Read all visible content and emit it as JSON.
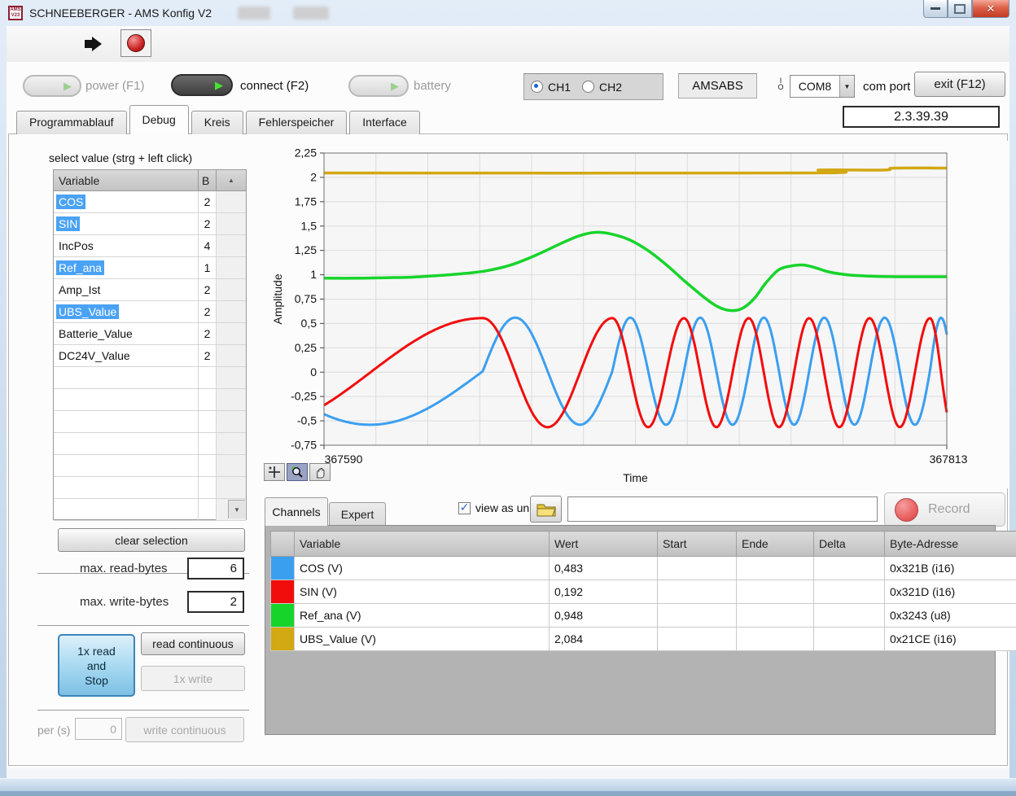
{
  "window": {
    "title": "SCHNEEBERGER - AMS Konfig V2",
    "icon_text": "AMS V23"
  },
  "toolbar": {
    "run_icon": "run-arrow",
    "stop_icon": "stop-circle"
  },
  "controls": {
    "power_label": "power (F1)",
    "connect_label": "connect (F2)",
    "battery_label": "battery",
    "power_on": false,
    "connect_on": true,
    "battery_on": false,
    "ch1_label": "CH1",
    "ch2_label": "CH2",
    "channel_selected": "CH1",
    "device_label": "AMSABS",
    "com_port_value": "COM8",
    "com_port_label": "com port",
    "exit_label": "exit (F12)",
    "version": "2.3.39.39"
  },
  "tabs": {
    "items": [
      "Programmablauf",
      "Debug",
      "Kreis",
      "Fehlerspeicher",
      "Interface"
    ],
    "active": "Debug"
  },
  "left_panel": {
    "title": "select value (strg + left click)",
    "selection_color": "#4aa2f4",
    "table": {
      "columns": [
        "Variable",
        "B"
      ],
      "rows": [
        {
          "name": "COS",
          "bytes": "2",
          "selected": true
        },
        {
          "name": "SIN",
          "bytes": "2",
          "selected": true
        },
        {
          "name": "IncPos",
          "bytes": "4",
          "selected": false
        },
        {
          "name": "Ref_ana",
          "bytes": "1",
          "selected": true
        },
        {
          "name": "Amp_Ist",
          "bytes": "2",
          "selected": false
        },
        {
          "name": "UBS_Value",
          "bytes": "2",
          "selected": true
        },
        {
          "name": "Batterie_Value",
          "bytes": "2",
          "selected": false
        },
        {
          "name": "DC24V_Value",
          "bytes": "2",
          "selected": false
        }
      ],
      "visible_row_count": 15
    },
    "clear_button": "clear selection",
    "read_bytes_label": "max. read-bytes",
    "read_bytes_value": "6",
    "write_bytes_label": "max. write-bytes",
    "write_bytes_value": "2",
    "read_once_lines": [
      "1x read",
      "and",
      "Stop"
    ],
    "read_cont_button": "read continuous",
    "write_once_button": "1x write",
    "per_label": "per (s)",
    "per_value": "0",
    "write_cont_button": "write continuous"
  },
  "chart_data": {
    "type": "line",
    "title": "",
    "xlabel": "Time",
    "ylabel": "Amplitude",
    "x_range": [
      367590,
      367813
    ],
    "x_tick_labels": [
      "367590",
      "367813"
    ],
    "ylim": [
      -0.75,
      2.25
    ],
    "y_tick_step": 0.25,
    "y_tick_labels": [
      "2,25",
      "2",
      "1,75",
      "1,5",
      "1,25",
      "1",
      "0,75",
      "0,5",
      "0,25",
      "0",
      "-0,25",
      "-0,5",
      "-0,75"
    ],
    "grid": true,
    "x_grid_divisions": 12,
    "chirp_phase_cycles": [
      [
        0,
        -0.102
      ],
      [
        0.255,
        0.25
      ],
      [
        0.463,
        1.25
      ],
      [
        0.578,
        2.25
      ],
      [
        0.682,
        3.25
      ],
      [
        0.779,
        4.25
      ],
      [
        0.876,
        5.25
      ],
      [
        0.973,
        6.25
      ],
      [
        1.0,
        6.63
      ]
    ],
    "series": [
      {
        "name": "UBS_Value (V)",
        "color": "#d2a813",
        "model": "keypoints",
        "points": [
          [
            0,
            2.045
          ],
          [
            0.78,
            2.045
          ],
          [
            0.795,
            2.075
          ],
          [
            0.9,
            2.075
          ],
          [
            0.915,
            2.095
          ],
          [
            1.0,
            2.095
          ]
        ]
      },
      {
        "name": "Ref_ana (V)",
        "color": "#17d42b",
        "model": "keypoints",
        "points": [
          [
            0,
            0.965
          ],
          [
            0.06,
            0.965
          ],
          [
            0.1,
            0.97
          ],
          [
            0.14,
            0.975
          ],
          [
            0.18,
            0.99
          ],
          [
            0.22,
            1.01
          ],
          [
            0.26,
            1.04
          ],
          [
            0.3,
            1.1
          ],
          [
            0.34,
            1.2
          ],
          [
            0.38,
            1.32
          ],
          [
            0.41,
            1.4
          ],
          [
            0.435,
            1.435
          ],
          [
            0.46,
            1.42
          ],
          [
            0.49,
            1.36
          ],
          [
            0.52,
            1.25
          ],
          [
            0.55,
            1.1
          ],
          [
            0.58,
            0.93
          ],
          [
            0.61,
            0.77
          ],
          [
            0.63,
            0.68
          ],
          [
            0.65,
            0.635
          ],
          [
            0.67,
            0.65
          ],
          [
            0.69,
            0.75
          ],
          [
            0.71,
            0.92
          ],
          [
            0.73,
            1.05
          ],
          [
            0.75,
            1.09
          ],
          [
            0.77,
            1.1
          ],
          [
            0.79,
            1.07
          ],
          [
            0.81,
            1.03
          ],
          [
            0.84,
            1.0
          ],
          [
            0.88,
            0.985
          ],
          [
            0.92,
            0.98
          ],
          [
            1.0,
            0.98
          ]
        ]
      },
      {
        "name": "COS (V)",
        "color": "#3b9ff0",
        "model": "chirp",
        "amplitude": 0.55,
        "offset": 0.01,
        "phase_offset_cycles": -0.25
      },
      {
        "name": "SIN (V)",
        "color": "#f20d0d",
        "model": "chirp",
        "amplitude": 0.56,
        "offset": -0.005,
        "phase_offset_cycles": 0
      }
    ]
  },
  "chart_palette": {
    "tools": [
      "crosshair-tool",
      "zoom-tool",
      "pan-hand-tool"
    ],
    "active_tool": "zoom-tool"
  },
  "bottom_panel": {
    "tabs": [
      "Channels",
      "Expert"
    ],
    "active": "Channels",
    "view_as_unit_label": "view as unit",
    "view_as_unit_checked": true,
    "file_path_value": "",
    "record_label": "Record",
    "table": {
      "columns": [
        "",
        "Variable",
        "Wert",
        "Start",
        "Ende",
        "Delta",
        "Byte-Adresse"
      ],
      "rows": [
        {
          "color": "#3b9ff0",
          "variable": "COS (V)",
          "wert": "0,483",
          "start": "",
          "ende": "",
          "delta": "",
          "adresse": "0x321B (i16)"
        },
        {
          "color": "#f20d0d",
          "variable": "SIN (V)",
          "wert": "0,192",
          "start": "",
          "ende": "",
          "delta": "",
          "adresse": "0x321D (i16)"
        },
        {
          "color": "#17d42b",
          "variable": "Ref_ana (V)",
          "wert": "0,948",
          "start": "",
          "ende": "",
          "delta": "",
          "adresse": "0x3243 (u8)"
        },
        {
          "color": "#d2a813",
          "variable": "UBS_Value (V)",
          "wert": "2,084",
          "start": "",
          "ende": "",
          "delta": "",
          "adresse": "0x21CE (i16)"
        }
      ]
    }
  }
}
